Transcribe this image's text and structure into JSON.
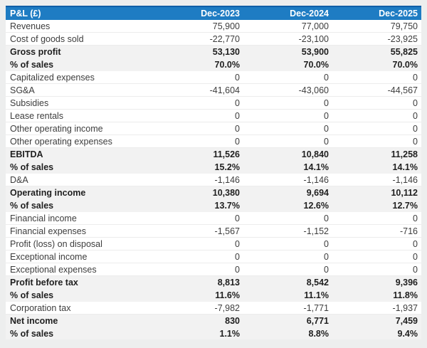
{
  "colors": {
    "header_bg": "#1e7cc3",
    "header_top_border": "#0f5fa8",
    "header_text": "#ffffff",
    "row_shaded_bg": "#f2f2f2",
    "row_bg": "#ffffff",
    "text_regular": "#3d3d3d",
    "text_bold": "#1f1f1f",
    "page_bg": "#edeeee"
  },
  "chart_data": {
    "type": "table",
    "title": "P&L (£)",
    "columns": [
      "Dec-2023",
      "Dec-2024",
      "Dec-2025"
    ],
    "rows": [
      {
        "label": "Revenues",
        "values": [
          "75,900",
          "77,000",
          "79,750"
        ],
        "emphasis": false
      },
      {
        "label": "Cost of goods sold",
        "values": [
          "-22,770",
          "-23,100",
          "-23,925"
        ],
        "emphasis": false
      },
      {
        "label": "Gross profit",
        "values": [
          "53,130",
          "53,900",
          "55,825"
        ],
        "emphasis": true
      },
      {
        "label": "% of sales",
        "values": [
          "70.0%",
          "70.0%",
          "70.0%"
        ],
        "emphasis": true
      },
      {
        "label": "Capitalized expenses",
        "values": [
          "0",
          "0",
          "0"
        ],
        "emphasis": false
      },
      {
        "label": "SG&A",
        "values": [
          "-41,604",
          "-43,060",
          "-44,567"
        ],
        "emphasis": false
      },
      {
        "label": "Subsidies",
        "values": [
          "0",
          "0",
          "0"
        ],
        "emphasis": false
      },
      {
        "label": "Lease rentals",
        "values": [
          "0",
          "0",
          "0"
        ],
        "emphasis": false
      },
      {
        "label": "Other operating income",
        "values": [
          "0",
          "0",
          "0"
        ],
        "emphasis": false
      },
      {
        "label": "Other operating expenses",
        "values": [
          "0",
          "0",
          "0"
        ],
        "emphasis": false
      },
      {
        "label": "EBITDA",
        "values": [
          "11,526",
          "10,840",
          "11,258"
        ],
        "emphasis": true
      },
      {
        "label": "% of sales",
        "values": [
          "15.2%",
          "14.1%",
          "14.1%"
        ],
        "emphasis": true
      },
      {
        "label": "D&A",
        "values": [
          "-1,146",
          "-1,146",
          "-1,146"
        ],
        "emphasis": false
      },
      {
        "label": "Operating income",
        "values": [
          "10,380",
          "9,694",
          "10,112"
        ],
        "emphasis": true
      },
      {
        "label": "% of sales",
        "values": [
          "13.7%",
          "12.6%",
          "12.7%"
        ],
        "emphasis": true
      },
      {
        "label": "Financial income",
        "values": [
          "0",
          "0",
          "0"
        ],
        "emphasis": false
      },
      {
        "label": "Financial expenses",
        "values": [
          "-1,567",
          "-1,152",
          "-716"
        ],
        "emphasis": false
      },
      {
        "label": "Profit (loss) on disposal",
        "values": [
          "0",
          "0",
          "0"
        ],
        "emphasis": false
      },
      {
        "label": "Exceptional income",
        "values": [
          "0",
          "0",
          "0"
        ],
        "emphasis": false
      },
      {
        "label": "Exceptional expenses",
        "values": [
          "0",
          "0",
          "0"
        ],
        "emphasis": false
      },
      {
        "label": "Profit before tax",
        "values": [
          "8,813",
          "8,542",
          "9,396"
        ],
        "emphasis": true
      },
      {
        "label": "% of sales",
        "values": [
          "11.6%",
          "11.1%",
          "11.8%"
        ],
        "emphasis": true
      },
      {
        "label": "Corporation tax",
        "values": [
          "-7,982",
          "-1,771",
          "-1,937"
        ],
        "emphasis": false
      },
      {
        "label": "Net income",
        "values": [
          "830",
          "6,771",
          "7,459"
        ],
        "emphasis": true
      },
      {
        "label": "% of sales",
        "values": [
          "1.1%",
          "8.8%",
          "9.4%"
        ],
        "emphasis": true
      }
    ]
  }
}
